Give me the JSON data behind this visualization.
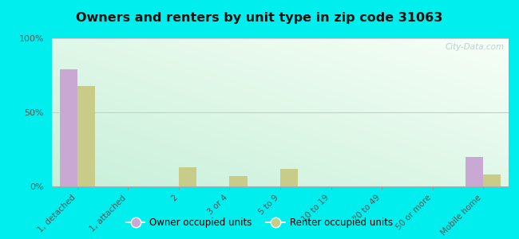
{
  "title": "Owners and renters by unit type in zip code 31063",
  "categories": [
    "1, detached",
    "1, attached",
    "2",
    "3 or 4",
    "5 to 9",
    "10 to 19",
    "20 to 49",
    "50 or more",
    "Mobile home"
  ],
  "owner_values": [
    79,
    0,
    0,
    0,
    0,
    0,
    0,
    0,
    20
  ],
  "renter_values": [
    68,
    0,
    13,
    7,
    12,
    0,
    0,
    0,
    8
  ],
  "owner_color": "#c9a8d4",
  "renter_color": "#c8cc88",
  "background_color": "#00eeee",
  "ylim": [
    0,
    100
  ],
  "yticks": [
    0,
    50,
    100
  ],
  "ytick_labels": [
    "0%",
    "50%",
    "100%"
  ],
  "bar_width": 0.35,
  "legend_owner": "Owner occupied units",
  "legend_renter": "Renter occupied units",
  "watermark": "City-Data.com"
}
